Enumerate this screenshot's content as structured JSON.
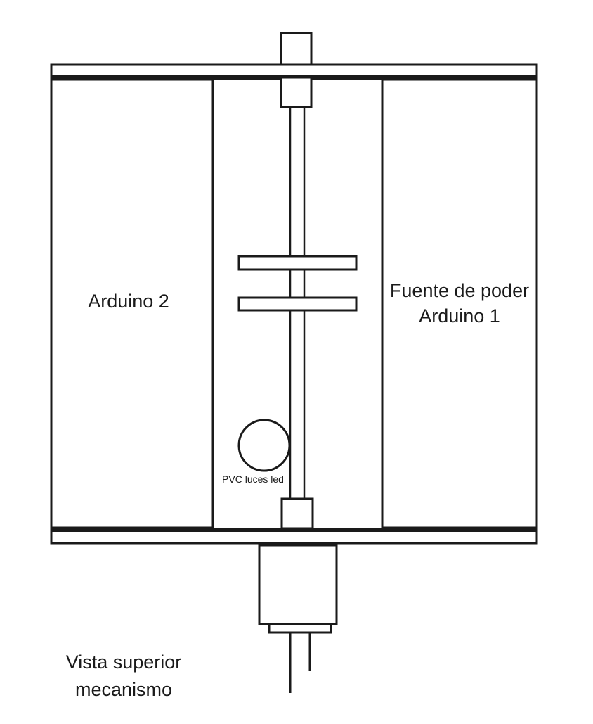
{
  "labels": {
    "arduino_2": "Arduino 2",
    "power_supply_line1": "Fuente de poder",
    "power_supply_line2": "Arduino 1",
    "pvc_leds": "PVC luces led",
    "caption_line1": "Vista superior",
    "caption_line2": "mecanismo"
  },
  "colors": {
    "stroke": "#1a1a1a",
    "background": "#ffffff"
  }
}
